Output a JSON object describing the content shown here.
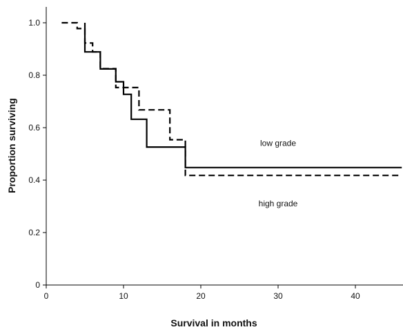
{
  "chart_data": {
    "type": "line",
    "title": "",
    "xlabel": "Survival in months",
    "ylabel": "Proportion surviving",
    "xlim": [
      0,
      46
    ],
    "ylim": [
      0,
      1.05
    ],
    "x_ticks": [
      0,
      10,
      20,
      30,
      40
    ],
    "y_ticks": [
      0,
      0.2,
      0.4,
      0.6,
      0.8,
      1.0
    ],
    "x_tick_labels": [
      "0",
      "10",
      "20",
      "30",
      "40"
    ],
    "y_tick_labels": [
      "0",
      "0.2",
      "0.4",
      "0.6",
      "0.8",
      "1.0"
    ],
    "grid": false,
    "annotations": [
      {
        "text": "low grade",
        "x": 30,
        "y": 0.53
      },
      {
        "text": "high grade",
        "x": 30,
        "y": 0.3
      }
    ],
    "series": [
      {
        "line_style": "solid",
        "color": "#000000",
        "steps": [
          [
            5,
            1.0
          ],
          [
            5,
            0.889
          ],
          [
            7,
            0.889
          ],
          [
            7,
            0.824
          ],
          [
            9,
            0.824
          ],
          [
            9,
            0.775
          ],
          [
            10,
            0.775
          ],
          [
            10,
            0.727
          ],
          [
            11,
            0.727
          ],
          [
            11,
            0.632
          ],
          [
            13,
            0.632
          ],
          [
            13,
            0.526
          ],
          [
            18,
            0.526
          ],
          [
            18,
            0.448
          ],
          [
            46,
            0.448
          ]
        ]
      },
      {
        "line_style": "dashed",
        "color": "#000000",
        "steps": [
          [
            2,
            1.0
          ],
          [
            4,
            1.0
          ],
          [
            4,
            0.978
          ],
          [
            5,
            0.978
          ],
          [
            5,
            0.923
          ],
          [
            6,
            0.923
          ],
          [
            6,
            0.889
          ],
          [
            7,
            0.889
          ],
          [
            7,
            0.825
          ],
          [
            9,
            0.825
          ],
          [
            9,
            0.753
          ],
          [
            12,
            0.753
          ],
          [
            12,
            0.668
          ],
          [
            16,
            0.668
          ],
          [
            16,
            0.554
          ],
          [
            18,
            0.554
          ],
          [
            18,
            0.418
          ],
          [
            46,
            0.418
          ]
        ]
      }
    ]
  }
}
